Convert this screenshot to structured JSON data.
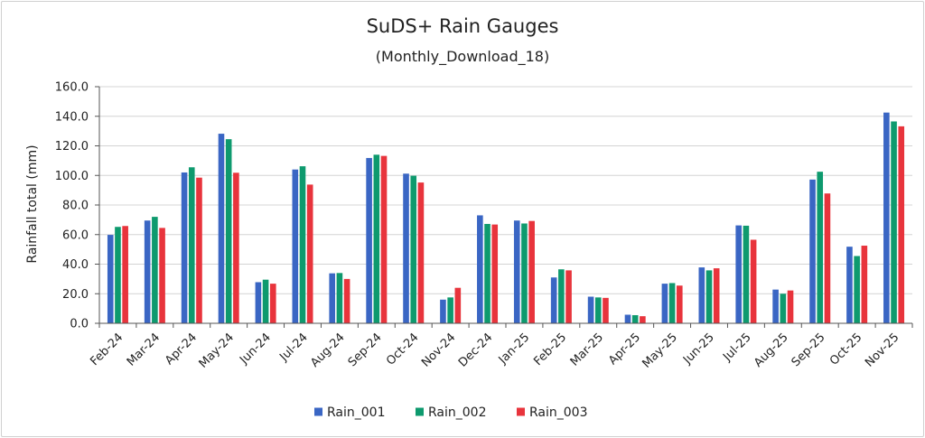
{
  "chart_data": {
    "type": "bar",
    "title": "SuDS+ Rain Gauges",
    "subtitle": "(Monthly_Download_18)",
    "xlabel": "",
    "ylabel": "Rainfall total (mm)",
    "ylim": [
      0,
      160
    ],
    "yticks": [
      "0.0",
      "20.0",
      "40.0",
      "60.0",
      "80.0",
      "100.0",
      "120.0",
      "140.0",
      "160.0"
    ],
    "grid": true,
    "legend_position": "bottom-center",
    "categories": [
      "Feb-24",
      "Mar-24",
      "Apr-24",
      "May-24",
      "Jun-24",
      "Jul-24",
      "Aug-24",
      "Sep-24",
      "Oct-24",
      "Nov-24",
      "Dec-24",
      "Jan-25",
      "Feb-25",
      "Mar-25",
      "Apr-25",
      "May-25",
      "Jun-25",
      "Jul-25",
      "Aug-25",
      "Sep-25",
      "Oct-25",
      "Nov-25"
    ],
    "series": [
      {
        "name": "Rain_001",
        "color": "#3a66c4",
        "values": [
          59.8,
          69.5,
          102.0,
          128.2,
          27.8,
          104.0,
          33.8,
          111.8,
          101.2,
          16.0,
          73.0,
          69.5,
          31.0,
          18.0,
          5.8,
          26.8,
          37.8,
          66.2,
          22.8,
          97.2,
          51.8,
          142.5
        ]
      },
      {
        "name": "Rain_002",
        "color": "#0e9a6e",
        "values": [
          65.2,
          72.0,
          105.5,
          124.5,
          29.5,
          106.2,
          34.0,
          114.0,
          99.8,
          17.5,
          67.2,
          67.5,
          36.5,
          17.5,
          5.5,
          27.2,
          35.8,
          66.0,
          20.0,
          102.5,
          45.5,
          136.5
        ]
      },
      {
        "name": "Rain_003",
        "color": "#e8343c",
        "values": [
          65.8,
          64.5,
          98.5,
          101.8,
          26.8,
          93.8,
          30.0,
          113.2,
          95.2,
          24.0,
          66.8,
          69.2,
          35.8,
          17.2,
          4.8,
          25.5,
          37.2,
          56.5,
          22.2,
          87.8,
          52.5,
          133.2
        ]
      }
    ]
  }
}
